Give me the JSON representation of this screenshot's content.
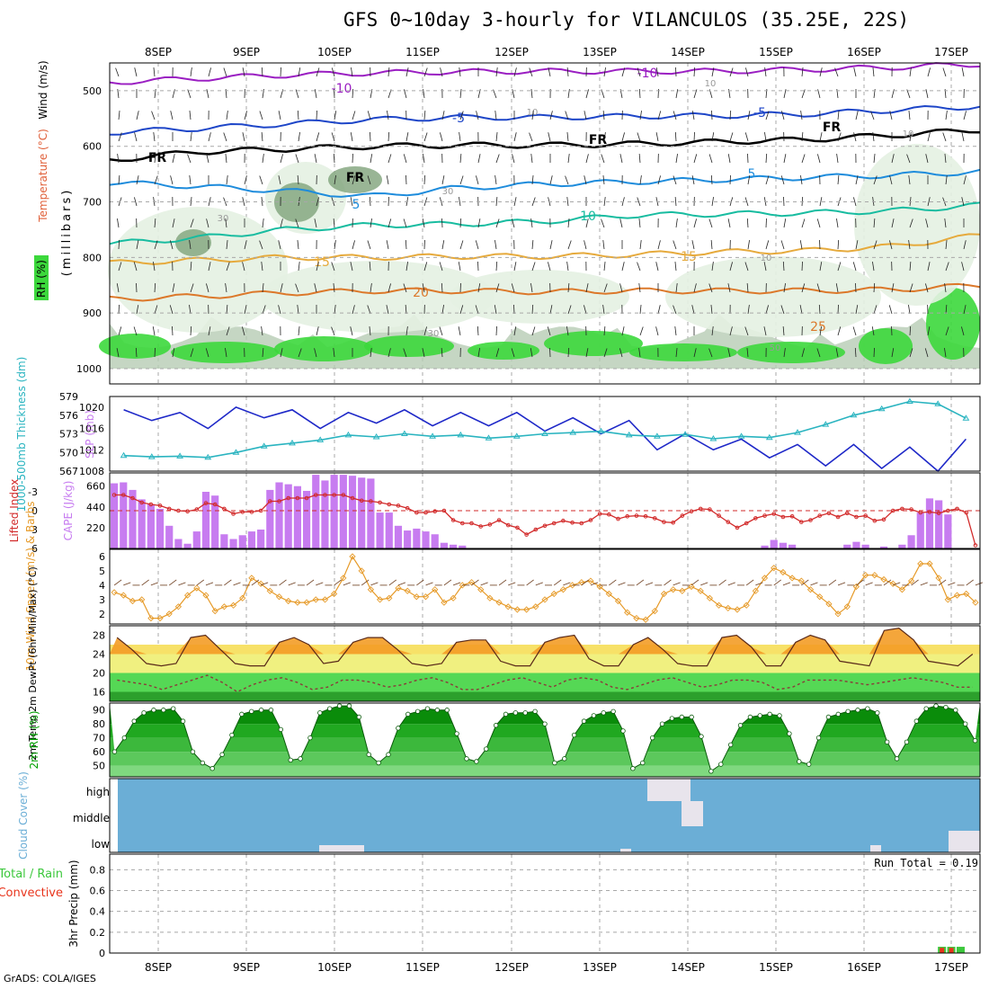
{
  "title": "GFS 0~10day 3-hourly for VILANCULOS (35.25E, 22S)",
  "credit": "GrADS: COLA/IGES",
  "colors": {
    "rh_shade_light": "#e4f1e2",
    "rh_shade_mid": "#b7ccb4",
    "rh_shade_dark": "#7fa27a",
    "rh_shade_green": "#3cd83c",
    "iso_purple": "#9a1ec2",
    "iso_blue_dark": "#1e46c8",
    "iso_blue": "#1e8cdc",
    "iso_teal": "#18bca0",
    "iso_gold": "#e6aa3c",
    "iso_orange": "#dc782a",
    "freezing": "#000000",
    "slp": "#1e28c8",
    "thickness": "#2ab4c0",
    "cape": "#c77cf0",
    "lifted_index": "#d22a2a",
    "wind_speed": "#e69a28",
    "temp_fill": "#f39c26",
    "dewpoint": "#8b3a3a",
    "rh_surface": "#00a000",
    "cloud_cover": "#6baed6",
    "rain_total": "#3cc83c",
    "rain_convective": "#e8341c"
  },
  "chart_data": [
    {
      "panel": "upper-air cross section",
      "type": "heatmap",
      "ylabel_rh": "RH (%)",
      "ylabel_temp": "Temperature (°C)",
      "ylabel_wind": "Wind (m/s)",
      "ylabel_units": "(millibars)",
      "y_ticks": [
        "500",
        "600",
        "700",
        "800",
        "900",
        "1000"
      ],
      "ylim": [
        1000,
        450
      ],
      "isotherm_labels": [
        "-10",
        "-10",
        "-5",
        "-5",
        "5",
        "5",
        "10",
        "15",
        "15",
        "20",
        "25",
        "FR",
        "FR",
        "FR",
        "FR"
      ],
      "rh_contour_labels": [
        "10",
        "10",
        "30",
        "30",
        "30",
        "50",
        "10",
        "10"
      ],
      "isotherms": [
        {
          "label": "-10",
          "level_mb": [
            485,
            478,
            472,
            468,
            466,
            465,
            465,
            465,
            462,
            458,
            452
          ]
        },
        {
          "label": "-5",
          "level_mb": [
            575,
            568,
            560,
            552,
            548,
            548,
            546,
            545,
            542,
            535,
            528
          ]
        },
        {
          "label": "5",
          "level_mb": [
            665,
            672,
            680,
            690,
            675,
            668,
            664,
            660,
            656,
            652,
            646
          ]
        },
        {
          "label": "10",
          "level_mb": [
            775,
            765,
            750,
            742,
            740,
            735,
            724,
            722,
            720,
            716,
            706
          ]
        },
        {
          "label": "15",
          "level_mb": [
            810,
            805,
            800,
            800,
            798,
            798,
            795,
            790,
            788,
            780,
            760
          ]
        },
        {
          "label": "20",
          "level_mb": [
            875,
            870,
            864,
            860,
            860,
            862,
            860,
            860,
            860,
            858,
            850
          ]
        },
        {
          "label": "FR",
          "level_mb": [
            625,
            610,
            605,
            600,
            598,
            598,
            596,
            592,
            588,
            580,
            570
          ]
        }
      ]
    },
    {
      "panel": "SLP and thickness",
      "type": "line",
      "ylabel_left": "1000-500mb Thickness (dm)",
      "ylabel_right": "SLP (mb)",
      "left_ticks": [
        "579",
        "576",
        "573",
        "570",
        "567"
      ],
      "right_ticks": [
        "1020",
        "1016",
        "1012",
        "1008"
      ],
      "series": [
        {
          "name": "SLP",
          "axis": "right",
          "values": [
            1019.5,
            1017.5,
            1019,
            1016,
            1020,
            1018,
            1019.5,
            1016,
            1019,
            1017,
            1019.5,
            1016.5,
            1019,
            1016.5,
            1019,
            1015.5,
            1018,
            1015,
            1017.5,
            1012,
            1015,
            1012,
            1014,
            1010.5,
            1013,
            1009,
            1013,
            1008.5,
            1012.5,
            1008,
            1014
          ]
        },
        {
          "name": "Thickness",
          "axis": "left",
          "values": [
            569.5,
            569.3,
            569.4,
            569.2,
            570,
            571,
            571.5,
            572,
            572.8,
            572.5,
            573,
            572.6,
            572.8,
            572.3,
            572.6,
            573,
            573.2,
            573.4,
            572.8,
            572.6,
            572.9,
            572.2,
            572.6,
            572.4,
            573.2,
            574.5,
            576,
            577,
            578.2,
            577.8,
            575.5
          ]
        }
      ]
    },
    {
      "panel": "CAPE and lifted index",
      "type": "bar",
      "ylabel_left": "Lifted Index",
      "ylabel_right": "CAPE (J/kg)",
      "left_ticks": [
        "-3",
        "0",
        "3",
        "6"
      ],
      "right_ticks": [
        "660",
        "440",
        "220"
      ],
      "ylim_cape": [
        0,
        800
      ],
      "cape_values": [
        690,
        700,
        620,
        520,
        470,
        420,
        240,
        100,
        50,
        180,
        600,
        560,
        150,
        100,
        140,
        180,
        200,
        620,
        700,
        680,
        660,
        610,
        780,
        720,
        780,
        780,
        770,
        750,
        740,
        380,
        380,
        240,
        190,
        210,
        180,
        150,
        60,
        40,
        30,
        0,
        0,
        0,
        0,
        0,
        0,
        0,
        0,
        0,
        0,
        0,
        0,
        0,
        0,
        0,
        0,
        0,
        0,
        0,
        0,
        0,
        0,
        0,
        0,
        0,
        0,
        0,
        0,
        0,
        0,
        0,
        0,
        30,
        90,
        60,
        40,
        0,
        0,
        0,
        0,
        0,
        40,
        70,
        40,
        0,
        20,
        0,
        40,
        140,
        380,
        530,
        510,
        360,
        0,
        0,
        0
      ],
      "lifted_index": [
        -2.5,
        -2.5,
        -2,
        -1.3,
        -1,
        -0.8,
        -0.3,
        0,
        0.1,
        -0.2,
        -1.2,
        -1,
        -0.3,
        0.5,
        0.2,
        0.2,
        0,
        -1.5,
        -1.5,
        -2,
        -2,
        -2,
        -2.5,
        -2.5,
        -2.5,
        -2.5,
        -2,
        -1.6,
        -1.5,
        -1.3,
        -1,
        -0.8,
        -0.4,
        0.3,
        0.3,
        0.1,
        0,
        1.5,
        2,
        2,
        2.5,
        2.2,
        1.5,
        2.3,
        2.7,
        3.8,
        3,
        2.4,
        2,
        1.6,
        1.9,
        2,
        1.5,
        0.5,
        0.6,
        1.3,
        0.9,
        0.8,
        0.9,
        1.2,
        1.8,
        1.9,
        0.8,
        0.1,
        -0.3,
        -0.2,
        0.8,
        1.8,
        2.7,
        2,
        1.2,
        0.8,
        0.5,
        1,
        0.9,
        1.8,
        1.5,
        0.8,
        0.4,
        1,
        0.4,
        1,
        0.8,
        1.6,
        1.4,
        0,
        -0.3,
        -0.2,
        0.3,
        0.2,
        0.4,
        0,
        -0.3,
        0.3,
        5.5
      ]
    },
    {
      "panel": "10m wind",
      "type": "line",
      "ylabel": "10m Wind Speed (m/s) & Barbs",
      "y_ticks": [
        "6",
        "5",
        "4",
        "3",
        "2"
      ],
      "ylim": [
        1.3,
        6.5
      ],
      "wind_speed": [
        3.5,
        3.3,
        2.9,
        3,
        1.7,
        1.7,
        2,
        2.5,
        3.3,
        3.8,
        3.3,
        2.2,
        2.5,
        2.6,
        3.1,
        4.5,
        4.1,
        3.6,
        3.2,
        2.9,
        2.8,
        2.8,
        3,
        3,
        3.4,
        4.5,
        6,
        5,
        3.7,
        3,
        3.1,
        3.8,
        3.6,
        3.2,
        3.2,
        3.7,
        2.8,
        3.1,
        4,
        4.2,
        3.7,
        3.1,
        2.8,
        2.5,
        2.3,
        2.3,
        2.5,
        3,
        3.4,
        3.7,
        4,
        4.2,
        4.3,
        3.9,
        3.4,
        2.9,
        2.1,
        1.7,
        1.6,
        2.2,
        3.4,
        3.7,
        3.6,
        3.9,
        3.6,
        3.1,
        2.6,
        2.4,
        2.3,
        2.6,
        3.6,
        4.5,
        5.2,
        4.9,
        4.5,
        4.3,
        3.7,
        3.2,
        2.7,
        2,
        2.5,
        3.9,
        4.7,
        4.7,
        4.4,
        4.1,
        3.7,
        4.3,
        5.5,
        5.5,
        4.5,
        3,
        3.3,
        3.4,
        2.8
      ]
    },
    {
      "panel": "2m temperature",
      "type": "area",
      "ylabel": "2m Temp 2m DewPt (6hr Min/Max) (°C)",
      "y_ticks": [
        "28",
        "24",
        "20",
        "16"
      ],
      "ylim": [
        14,
        30
      ],
      "temp_max": [
        27.5,
        25,
        22,
        21.5,
        22,
        27.5,
        28,
        25,
        22,
        21.5,
        21.5,
        26.5,
        27.5,
        26,
        22,
        22.5,
        26.5,
        27.5,
        27.5,
        25,
        22,
        21.5,
        22,
        26.5,
        27,
        27,
        22.5,
        21.5,
        21.5,
        26.5,
        27.5,
        28,
        23,
        21.5,
        21.5,
        26,
        27.5,
        25,
        22,
        21.5,
        21.5,
        27.5,
        28,
        25.5,
        21.5,
        21.5,
        26.5,
        28,
        27,
        22.5,
        22,
        21.5,
        29,
        29.5,
        27,
        22.5,
        22,
        21.5,
        24
      ],
      "dewpoint": [
        18.5,
        18,
        17.5,
        16.5,
        17.5,
        18.5,
        19.5,
        18,
        16,
        17.5,
        18.5,
        19,
        18,
        16.5,
        17,
        18.5,
        18.5,
        18,
        17,
        17.5,
        18.5,
        19,
        18,
        16.5,
        16.5,
        17.5,
        18.5,
        19,
        18,
        17,
        18.5,
        19,
        18.5,
        17,
        16.5,
        17.5,
        18.5,
        19,
        18,
        17,
        17.5,
        18.5,
        18.5,
        18,
        16.5,
        17,
        18.5,
        18.5,
        18.5,
        18,
        17.5,
        18,
        18.5,
        19,
        18.5,
        18,
        17,
        17
      ]
    },
    {
      "panel": "2m RH",
      "type": "area",
      "ylabel": "2m RH (%)",
      "y_ticks": [
        "90",
        "80",
        "70",
        "60",
        "50"
      ],
      "ylim": [
        42,
        95
      ],
      "rh": [
        60,
        70,
        82,
        88,
        90,
        90,
        91,
        82,
        60,
        52,
        48,
        58,
        72,
        87,
        89,
        90,
        90,
        76,
        54,
        55,
        70,
        88,
        91,
        93,
        93,
        85,
        58,
        52,
        58,
        77,
        87,
        89,
        91,
        90,
        90,
        73,
        55,
        53,
        62,
        79,
        87,
        88,
        88,
        89,
        80,
        52,
        55,
        72,
        82,
        86,
        88,
        89,
        75,
        48,
        52,
        70,
        80,
        84,
        85,
        85,
        71,
        46,
        51,
        65,
        79,
        85,
        86,
        87,
        86,
        73,
        53,
        51,
        70,
        85,
        87,
        89,
        90,
        91,
        88,
        67,
        55,
        67,
        82,
        91,
        93,
        92,
        90,
        80,
        68
      ]
    },
    {
      "panel": "cloud cover",
      "type": "heatmap",
      "ylabel": "Cloud Cover (%)",
      "levels": [
        "high",
        "middle",
        "low"
      ]
    },
    {
      "panel": "precipitation",
      "type": "bar",
      "ylabel": "3hr Precip (mm)",
      "legend": [
        "Total / Rain",
        "Convective"
      ],
      "run_total_label": "Run Total = 0.19",
      "y_ticks": [
        "0.8",
        "0.6",
        "0.4",
        "0.2",
        "0"
      ],
      "ylim": [
        0,
        0.95
      ],
      "bars": [
        {
          "date_index": 8.85,
          "rain": 0.06,
          "convective": 0.05
        },
        {
          "date_index": 8.95,
          "rain": 0.06,
          "convective": 0.05
        },
        {
          "date_index": 9.05,
          "rain": 0.06,
          "convective": 0.0
        }
      ]
    }
  ],
  "time_axis": {
    "labels": [
      "8SEP",
      "9SEP",
      "10SEP",
      "11SEP",
      "12SEP",
      "13SEP",
      "14SEP",
      "15SEP",
      "16SEP",
      "17SEP"
    ]
  }
}
